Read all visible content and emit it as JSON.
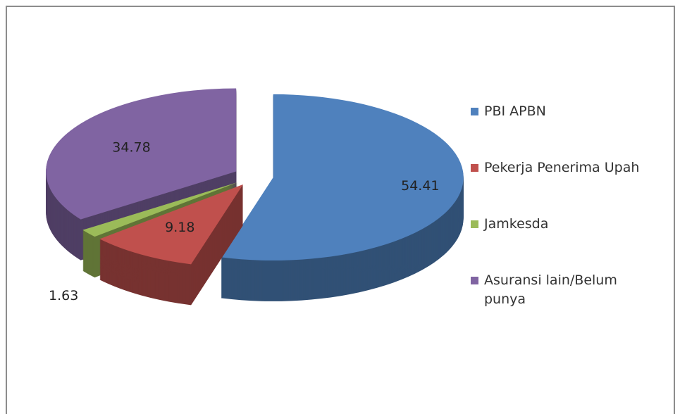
{
  "chart_data": {
    "type": "pie",
    "categories": [
      "PBI APBN",
      "Pekerja Penerima Upah",
      "Jamkesda",
      "Asuransi lain/Belum punya"
    ],
    "values": [
      54.41,
      9.18,
      1.63,
      34.78
    ],
    "colors": [
      "#4f81bd",
      "#c0504d",
      "#9bbb59",
      "#8064a2"
    ],
    "legend": "right"
  }
}
